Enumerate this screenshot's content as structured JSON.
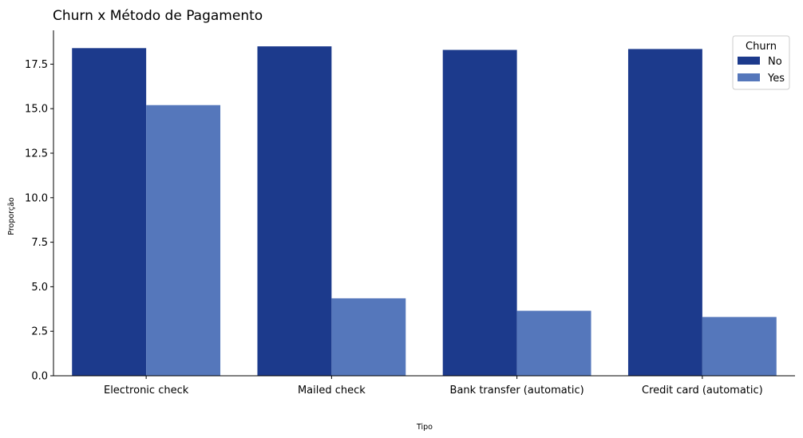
{
  "chart_data": {
    "type": "bar",
    "title": "Churn x Método de Pagamento",
    "xlabel": "Tipo",
    "ylabel": "Proporção",
    "categories": [
      "Electronic check",
      "Mailed check",
      "Bank transfer (automatic)",
      "Credit card (automatic)"
    ],
    "series": [
      {
        "name": "No",
        "values": [
          18.4,
          18.5,
          18.3,
          18.35
        ],
        "color": "#1c3a8c"
      },
      {
        "name": "Yes",
        "values": [
          15.2,
          4.35,
          3.65,
          3.3
        ],
        "color": "#5577bb"
      }
    ],
    "yticks": [
      "0.0",
      "2.5",
      "5.0",
      "7.5",
      "10.0",
      "12.5",
      "15.0",
      "17.5"
    ],
    "ylim": [
      0,
      19.4
    ],
    "legend": {
      "title": "Churn",
      "placement": "top-right"
    },
    "grid": false
  }
}
